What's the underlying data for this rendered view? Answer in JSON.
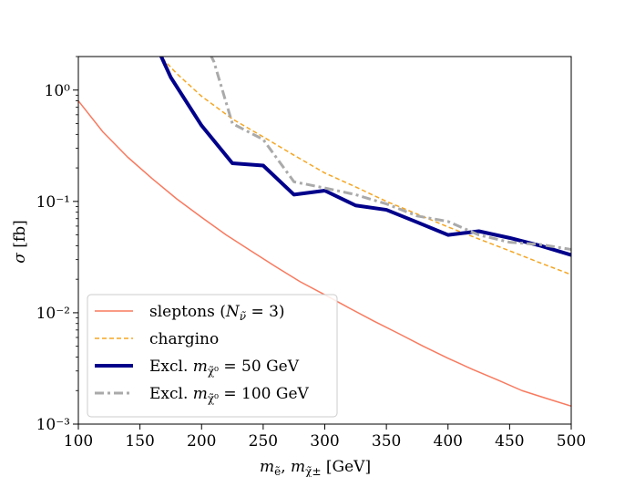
{
  "chart_data": {
    "type": "line",
    "xlabel": "m_ẽ, m_χ̃± [GeV]",
    "ylabel": "σ [fb]",
    "xlim": [
      100,
      500
    ],
    "ylim": [
      0.001,
      2.0
    ],
    "yscale": "log",
    "grid": false,
    "legend_position": "lower-left",
    "x_ticks": [
      100,
      150,
      200,
      250,
      300,
      350,
      400,
      450,
      500
    ],
    "x_tick_labels": [
      "100",
      "150",
      "200",
      "250",
      "300",
      "350",
      "400",
      "450",
      "500"
    ],
    "y_ticks": [
      0.001,
      0.01,
      0.1,
      1
    ],
    "y_tick_labels": [
      "10⁻³",
      "10⁻²",
      "10⁻¹",
      "10⁰"
    ],
    "series": [
      {
        "name": "sleptons (N_ν̃ = 3)",
        "color": "#f87a5f",
        "style": "solid",
        "width": 1.5,
        "x": [
          100,
          120,
          140,
          160,
          180,
          200,
          220,
          240,
          260,
          280,
          300,
          320,
          340,
          360,
          380,
          400,
          420,
          440,
          460,
          480,
          500
        ],
        "y": [
          0.8,
          0.42,
          0.25,
          0.16,
          0.105,
          0.072,
          0.05,
          0.036,
          0.026,
          0.019,
          0.0145,
          0.011,
          0.0084,
          0.0065,
          0.005,
          0.0039,
          0.0031,
          0.0025,
          0.002,
          0.0017,
          0.00145
        ]
      },
      {
        "name": "chargino",
        "color": "#f5a623",
        "style": "dashed",
        "width": 1.5,
        "x": [
          160,
          180,
          200,
          225,
          250,
          275,
          300,
          325,
          350,
          375,
          400,
          425,
          450,
          475,
          500
        ],
        "y": [
          2.4,
          1.4,
          0.88,
          0.55,
          0.38,
          0.26,
          0.18,
          0.135,
          0.1,
          0.077,
          0.059,
          0.046,
          0.036,
          0.028,
          0.022
        ]
      },
      {
        "name": "Excl. m_χ̃⁰ = 50 GeV",
        "color": "#00008b",
        "style": "solid",
        "width": 4,
        "x": [
          160,
          175,
          200,
          225,
          250,
          275,
          300,
          325,
          350,
          375,
          400,
          425,
          450,
          475,
          500
        ],
        "y": [
          3.0,
          1.3,
          0.48,
          0.22,
          0.21,
          0.115,
          0.125,
          0.092,
          0.084,
          0.065,
          0.05,
          0.054,
          0.047,
          0.04,
          0.033
        ]
      },
      {
        "name": "Excl. m_χ̃⁰ = 100 GeV",
        "color": "#aaaaaa",
        "style": "dashdot",
        "width": 3,
        "x": [
          200,
          210,
          225,
          250,
          275,
          300,
          325,
          350,
          375,
          400,
          425,
          450,
          475,
          500
        ],
        "y": [
          3.0,
          1.8,
          0.5,
          0.36,
          0.15,
          0.132,
          0.115,
          0.095,
          0.074,
          0.066,
          0.05,
          0.043,
          0.041,
          0.037
        ]
      }
    ]
  }
}
